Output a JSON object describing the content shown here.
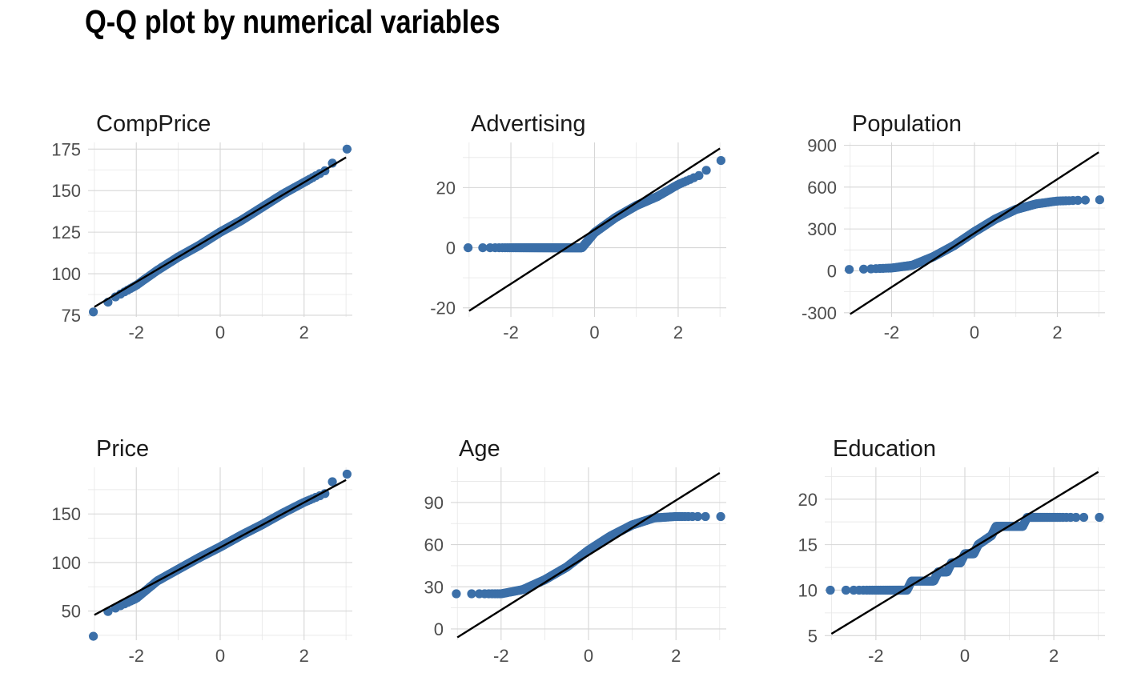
{
  "title": "Q-Q plot by numerical variables",
  "colors": {
    "points": "#3b6fa8",
    "line": "#000000",
    "grid": "#d6d6d6",
    "text": "#4d4d4d"
  },
  "chart_data": [
    {
      "type": "scatter",
      "title": "CompPrice",
      "xlim": [
        -3.15,
        3.15
      ],
      "ylim": [
        74,
        179
      ],
      "x_ticks": [
        -2,
        0,
        2
      ],
      "x_tick_labels": [
        "-2",
        "0",
        "2"
      ],
      "y_ticks": [
        75,
        100,
        125,
        150,
        175
      ],
      "y_tick_labels": [
        "75",
        "100",
        "125",
        "150",
        "175"
      ],
      "line": {
        "x": [
          -3,
          3
        ],
        "y": [
          80,
          170
        ]
      },
      "anchors": {
        "q": [
          -3,
          -2.5,
          -2,
          -1.5,
          -1,
          -0.5,
          0,
          0.5,
          1,
          1.5,
          2,
          2.5,
          3
        ],
        "v": [
          77,
          86,
          93,
          102,
          110,
          117,
          125,
          132,
          140,
          148,
          155,
          162,
          175
        ]
      }
    },
    {
      "type": "scatter",
      "title": "Advertising",
      "xlim": [
        -3.15,
        3.15
      ],
      "ylim": [
        -23,
        35
      ],
      "x_ticks": [
        -2,
        0,
        2
      ],
      "x_tick_labels": [
        "-2",
        "0",
        "2"
      ],
      "y_ticks": [
        -20,
        0,
        20
      ],
      "y_tick_labels": [
        "-20",
        "0",
        "20"
      ],
      "line": {
        "x": [
          -3,
          3
        ],
        "y": [
          -21,
          33
        ]
      },
      "anchors": {
        "q": [
          -3,
          -2.7,
          -2.4,
          -2,
          -1,
          -0.4,
          -0.3,
          0,
          0.5,
          1,
          1.5,
          2,
          2.5,
          2.7,
          3
        ],
        "v": [
          0,
          0,
          0,
          0,
          0,
          0,
          0,
          5,
          10,
          14,
          17,
          21,
          24,
          26,
          29
        ]
      }
    },
    {
      "type": "scatter",
      "title": "Population",
      "xlim": [
        -3.15,
        3.15
      ],
      "ylim": [
        -330,
        920
      ],
      "x_ticks": [
        -2,
        0,
        2
      ],
      "x_tick_labels": [
        "-2",
        "0",
        "2"
      ],
      "y_ticks": [
        -300,
        0,
        300,
        600,
        900
      ],
      "y_tick_labels": [
        "-300",
        "0",
        "300",
        "600",
        "900"
      ],
      "line": {
        "x": [
          -3,
          3
        ],
        "y": [
          -310,
          850
        ]
      },
      "anchors": {
        "q": [
          -3,
          -2.7,
          -2,
          -1.5,
          -1,
          -0.5,
          0,
          0.5,
          1,
          1.5,
          2,
          2.5,
          3
        ],
        "v": [
          10,
          12,
          20,
          40,
          100,
          180,
          280,
          370,
          440,
          480,
          500,
          505,
          509
        ]
      }
    },
    {
      "type": "scatter",
      "title": "Price",
      "xlim": [
        -3.15,
        3.15
      ],
      "ylim": [
        20,
        198
      ],
      "x_ticks": [
        -2,
        0,
        2
      ],
      "x_tick_labels": [
        "-2",
        "0",
        "2"
      ],
      "y_ticks": [
        50,
        100,
        150
      ],
      "y_tick_labels": [
        "50",
        "100",
        "150"
      ],
      "line": {
        "x": [
          -3,
          3
        ],
        "y": [
          46,
          185
        ]
      },
      "anchors": {
        "q": [
          -3,
          -2.7,
          -2.5,
          -2,
          -1.5,
          -1,
          -0.5,
          0,
          0.5,
          1,
          1.5,
          2,
          2.5,
          2.7,
          3
        ],
        "v": [
          24,
          49,
          53,
          63,
          81,
          93,
          105,
          116,
          128,
          139,
          151,
          162,
          171,
          185,
          191
        ]
      }
    },
    {
      "type": "scatter",
      "title": "Age",
      "xlim": [
        -3.15,
        3.15
      ],
      "ylim": [
        -8,
        115
      ],
      "x_ticks": [
        -2,
        0,
        2
      ],
      "x_tick_labels": [
        "-2",
        "0",
        "2"
      ],
      "y_ticks": [
        0,
        30,
        60,
        90
      ],
      "y_tick_labels": [
        "0",
        "30",
        "60",
        "90"
      ],
      "line": {
        "x": [
          -3,
          3
        ],
        "y": [
          -6,
          111
        ]
      },
      "anchors": {
        "q": [
          -3,
          -2.7,
          -2,
          -1.5,
          -1,
          -0.5,
          0,
          0.5,
          1,
          1.5,
          2,
          2.5,
          3
        ],
        "v": [
          25,
          25,
          25,
          28,
          35,
          44,
          56,
          66,
          74,
          79,
          80,
          80,
          80
        ]
      }
    },
    {
      "type": "scatter",
      "title": "Education",
      "xlim": [
        -3.15,
        3.15
      ],
      "ylim": [
        4.5,
        23.5
      ],
      "x_ticks": [
        -2,
        0,
        2
      ],
      "x_tick_labels": [
        "-2",
        "0",
        "2"
      ],
      "y_ticks": [
        5,
        10,
        15,
        20
      ],
      "y_tick_labels": [
        "5",
        "10",
        "15",
        "20"
      ],
      "line": {
        "x": [
          -3,
          3
        ],
        "y": [
          5.2,
          23
        ]
      },
      "anchors": {
        "q": [
          -3,
          -2.7,
          -1.3,
          -1.2,
          -0.7,
          -0.6,
          -0.4,
          -0.3,
          -0.1,
          0,
          0.2,
          0.3,
          0.6,
          0.7,
          1.3,
          1.4,
          3
        ],
        "v": [
          10,
          10,
          10,
          11,
          11,
          12,
          12,
          13,
          13,
          14,
          14,
          15,
          16,
          17,
          17,
          18,
          18
        ]
      }
    }
  ]
}
